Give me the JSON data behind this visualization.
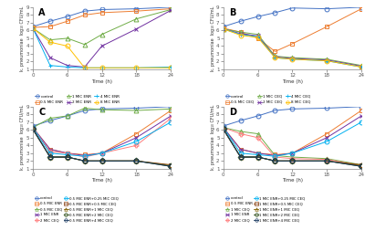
{
  "time": [
    0,
    3,
    6,
    9,
    12,
    18,
    24
  ],
  "panel_A": {
    "control": [
      6.5,
      7.2,
      7.8,
      8.5,
      8.7,
      8.8,
      9.0
    ],
    "enr_0_5": [
      6.4,
      6.5,
      7.2,
      8.0,
      8.3,
      8.5,
      8.8
    ],
    "enr_1": [
      6.3,
      4.8,
      5.0,
      4.2,
      5.5,
      7.5,
      8.7
    ],
    "enr_2": [
      6.3,
      2.5,
      1.5,
      1.3,
      4.0,
      6.2,
      8.6
    ],
    "enr_4": [
      6.3,
      1.5,
      1.3,
      1.2,
      1.2,
      1.2,
      1.3
    ],
    "enr_8": [
      6.3,
      4.5,
      4.0,
      1.2,
      1.2,
      1.2,
      1.2
    ],
    "legend": [
      "control",
      "0.5 MIC ENR",
      "1 MIC ENR",
      "2 MIC ENR",
      "4 MIC ENR",
      "8 MIC ENR"
    ]
  },
  "panel_B": {
    "control": [
      6.5,
      7.2,
      7.8,
      8.3,
      8.9,
      8.8,
      9.0
    ],
    "ceq_0_5": [
      6.3,
      5.8,
      5.0,
      3.3,
      4.3,
      6.5,
      8.8
    ],
    "ceq_1": [
      6.2,
      5.8,
      5.5,
      2.7,
      2.5,
      2.3,
      1.5
    ],
    "ceq_2": [
      6.2,
      5.6,
      5.3,
      2.6,
      2.4,
      2.2,
      1.4
    ],
    "ceq_4": [
      6.2,
      5.5,
      5.2,
      2.5,
      2.3,
      2.1,
      1.3
    ],
    "ceq_8": [
      6.2,
      5.4,
      5.1,
      2.5,
      2.3,
      2.1,
      1.3
    ],
    "legend": [
      "control",
      "0.5 MIC CEQ",
      "1 MIC CEQ",
      "2 MIC CEQ",
      "4 MIC CEQ",
      "8 MIC CEQ"
    ]
  },
  "panel_C": {
    "control": [
      6.5,
      7.2,
      7.8,
      8.5,
      8.7,
      8.8,
      9.0
    ],
    "enr_0_5": [
      6.3,
      3.5,
      3.0,
      2.8,
      3.0,
      5.5,
      8.5
    ],
    "ceq_0_5": [
      6.3,
      7.5,
      7.8,
      8.8,
      8.6,
      8.5,
      8.7
    ],
    "enr_1": [
      6.3,
      3.5,
      3.0,
      2.7,
      3.0,
      5.0,
      7.8
    ],
    "ceq_2": [
      6.3,
      3.2,
      3.0,
      2.5,
      3.0,
      4.0,
      7.5
    ],
    "enr05_ceq025": [
      6.3,
      3.0,
      2.8,
      2.6,
      3.0,
      4.5,
      7.0
    ],
    "enr05_ceq05": [
      6.1,
      2.5,
      2.5,
      2.0,
      2.0,
      2.0,
      1.5
    ],
    "enr05_ceq1": [
      6.1,
      2.5,
      2.5,
      2.0,
      2.0,
      2.0,
      1.4
    ],
    "enr05_ceq2": [
      6.1,
      2.5,
      2.5,
      2.0,
      2.0,
      2.0,
      1.3
    ],
    "enr05_ceq4": [
      6.1,
      2.5,
      2.5,
      2.0,
      2.0,
      2.0,
      1.3
    ],
    "labels": [
      "control",
      "0.5 MIC ENR",
      "0.5 MIC CEQ",
      "1 MIC ENR",
      "2 MIC CEQ",
      "0.5 MIC ENR+0.25 MIC CEQ",
      "0.5 MIC ENR+0.5 MIC CEQ",
      "0.5 MIC ENR+1 MIC CEQ",
      "0.5 MIC ENR+2 MIC CEQ",
      "0.5 MIC ENR+4 MIC CEQ"
    ]
  },
  "panel_D": {
    "control": [
      6.5,
      7.2,
      7.8,
      8.5,
      8.7,
      8.8,
      9.0
    ],
    "enr_0_5": [
      6.3,
      3.5,
      3.0,
      2.8,
      3.0,
      5.5,
      8.5
    ],
    "ceq_1": [
      6.3,
      5.8,
      5.5,
      2.7,
      2.5,
      2.3,
      1.5
    ],
    "enr_1": [
      6.3,
      3.5,
      3.0,
      2.7,
      3.0,
      5.0,
      7.8
    ],
    "ceq_2": [
      6.3,
      5.5,
      5.0,
      2.5,
      2.3,
      2.2,
      1.4
    ],
    "enr1_ceq025": [
      6.3,
      3.0,
      2.8,
      2.6,
      3.0,
      4.5,
      7.0
    ],
    "enr1_ceq05": [
      6.1,
      2.5,
      2.5,
      2.0,
      2.0,
      2.0,
      1.5
    ],
    "enr1_ceq1": [
      6.1,
      2.5,
      2.5,
      2.0,
      2.0,
      2.0,
      1.4
    ],
    "enr1_ceq2": [
      6.1,
      2.5,
      2.5,
      2.0,
      2.0,
      2.0,
      1.3
    ],
    "enr1_ceq4": [
      6.1,
      2.5,
      2.5,
      2.0,
      2.0,
      2.0,
      1.3
    ],
    "labels": [
      "control",
      "0.5 MIC ENR",
      "1 MIC CEQ",
      "1 MIC ENR",
      "2 MIC CEQ",
      "1 MIC ENR+0.25 MIC CEQ",
      "1 MIC ENR+0.5 MIC CEQ",
      "1 MIC ENR+1 MIC CEQ",
      "1 MIC ENR+2 MIC CEQ",
      "1 MIC ENR+4 MIC CEQ"
    ]
  },
  "AB_colors": [
    "#4472C4",
    "#ED7D31",
    "#70AD47",
    "#7030A0",
    "#00B0F0",
    "#FFC000"
  ],
  "AB_markers": [
    "o",
    "s",
    "^",
    "x",
    "+",
    "o"
  ],
  "CD_colors": [
    "#4472C4",
    "#ED7D31",
    "#70AD47",
    "#7030A0",
    "#FF7F7F",
    "#00B0F0",
    "#843C0C",
    "#806000",
    "#375623",
    "#17375E"
  ],
  "CD_markers": [
    "o",
    "s",
    "^",
    "x",
    "P",
    "o",
    "s",
    "^",
    "D",
    "o"
  ]
}
